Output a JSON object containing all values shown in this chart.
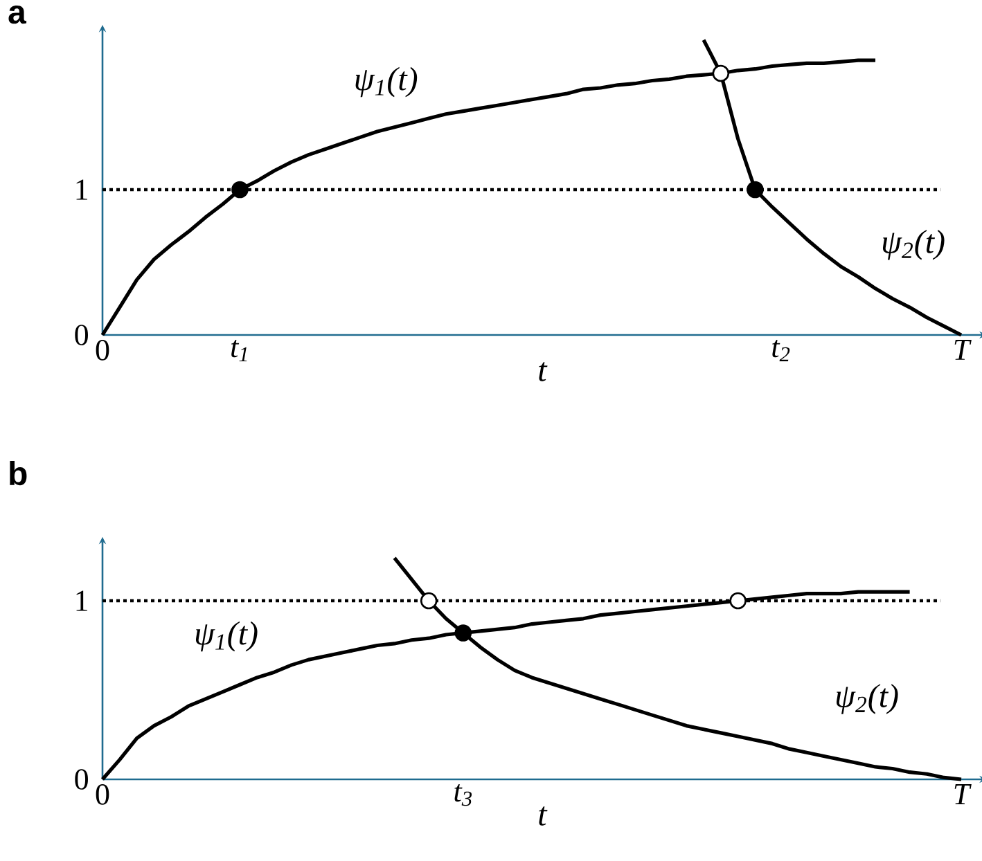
{
  "chart_data": [
    {
      "type": "line",
      "title": "a",
      "xlabel": "t",
      "categories": [
        null,
        null,
        null,
        null,
        null,
        null,
        null,
        null,
        null,
        null,
        null,
        null,
        null,
        null,
        null,
        null,
        null,
        null,
        null,
        null,
        null,
        null,
        null,
        null,
        null,
        null,
        null,
        null,
        null,
        null,
        null,
        null,
        null,
        null,
        null,
        null,
        null,
        null,
        null,
        null,
        null,
        null,
        null,
        null,
        null,
        null,
        null,
        null,
        null,
        null,
        null
      ],
      "ylim": [
        0,
        2.1
      ],
      "yticks": [
        0,
        1
      ],
      "annotations": [
        "0",
        "t$_{1}$",
        "t$_{2}$",
        "T"
      ],
      "ref_lines": [
        {
          "axis": "y",
          "value": 1,
          "color": "#000000",
          "line_style": "dotted"
        }
      ],
      "series": [
        {
          "name": "ψ$_{1}$(t)",
          "color": "#000000",
          "values": [
            0,
            0.19,
            0.38,
            0.52,
            0.62,
            0.71,
            0.81,
            0.9,
            1.0,
            1.06,
            1.13,
            1.19,
            1.24,
            1.28,
            1.32,
            1.36,
            1.4,
            1.43,
            1.46,
            1.49,
            1.52,
            1.54,
            1.56,
            1.58,
            1.6,
            1.62,
            1.64,
            1.66,
            1.69,
            1.7,
            1.72,
            1.73,
            1.75,
            1.76,
            1.78,
            1.79,
            1.8,
            1.82,
            1.83,
            1.85,
            1.86,
            1.87,
            1.87,
            1.88,
            1.89,
            1.89,
            null,
            null,
            null,
            null,
            null
          ]
        },
        {
          "name": "ψ$_{2}$(t)",
          "color": "#000000",
          "values": [
            null,
            null,
            null,
            null,
            null,
            null,
            null,
            null,
            null,
            null,
            null,
            null,
            null,
            null,
            null,
            null,
            null,
            null,
            null,
            null,
            null,
            null,
            null,
            null,
            null,
            null,
            null,
            null,
            null,
            null,
            null,
            null,
            null,
            null,
            null,
            2.03,
            1.8,
            1.35,
            1.0,
            0.88,
            0.77,
            0.66,
            0.56,
            0.47,
            0.4,
            0.32,
            0.25,
            0.19,
            0.12,
            0.06,
            0
          ]
        },
        {
          "type": "scatter",
          "color": "#000000",
          "marker": "circle",
          "values": [
            null,
            null,
            null,
            null,
            null,
            null,
            null,
            null,
            1,
            null,
            null,
            null,
            null,
            null,
            null,
            null,
            null,
            null,
            null,
            null,
            null,
            null,
            null,
            null,
            null,
            null,
            null,
            null,
            null,
            null,
            null,
            null,
            null,
            null,
            null,
            null,
            null,
            null,
            1,
            null,
            null,
            null,
            null,
            null,
            null,
            null,
            null,
            null,
            null,
            null,
            null
          ]
        },
        {
          "type": "scatter",
          "color": "#ffffff",
          "marker": "circle",
          "values": [
            null,
            null,
            null,
            null,
            null,
            null,
            null,
            null,
            null,
            null,
            null,
            null,
            null,
            null,
            null,
            null,
            null,
            null,
            null,
            null,
            null,
            null,
            null,
            null,
            null,
            null,
            null,
            null,
            null,
            null,
            null,
            null,
            null,
            null,
            null,
            null,
            1.8,
            null,
            null,
            null,
            null,
            null,
            null,
            null,
            null,
            null,
            null,
            null,
            null,
            null,
            null
          ]
        }
      ]
    },
    {
      "type": "line",
      "title": "b",
      "xlabel": "t",
      "categories": [
        null,
        null,
        null,
        null,
        null,
        null,
        null,
        null,
        null,
        null,
        null,
        null,
        null,
        null,
        null,
        null,
        null,
        null,
        null,
        null,
        null,
        null,
        null,
        null,
        null,
        null,
        null,
        null,
        null,
        null,
        null,
        null,
        null,
        null,
        null,
        null,
        null,
        null,
        null,
        null,
        null,
        null,
        null,
        null,
        null,
        null,
        null,
        null,
        null,
        null,
        null
      ],
      "ylim": [
        0,
        1.33
      ],
      "yticks": [
        0,
        1
      ],
      "annotations": [
        "0",
        "t$_{3}$",
        "T"
      ],
      "ref_lines": [
        {
          "axis": "y",
          "value": 1,
          "color": "#000000",
          "line_style": "dotted"
        }
      ],
      "series": [
        {
          "name": "ψ$_{1}$(t)",
          "color": "#000000",
          "values": [
            0,
            0.11,
            0.23,
            0.3,
            0.35,
            0.41,
            0.45,
            0.49,
            0.53,
            0.57,
            0.6,
            0.64,
            0.67,
            0.69,
            0.71,
            0.73,
            0.75,
            0.76,
            0.78,
            0.79,
            0.81,
            0.82,
            0.83,
            0.84,
            0.85,
            0.87,
            0.88,
            0.89,
            0.9,
            0.92,
            0.93,
            0.94,
            0.95,
            0.96,
            0.97,
            0.98,
            0.99,
            1.0,
            1.01,
            1.02,
            1.03,
            1.04,
            1.04,
            1.04,
            1.05,
            1.05,
            1.05,
            1.05,
            null,
            null,
            null
          ]
        },
        {
          "name": "ψ$_{2}$(t)",
          "color": "#000000",
          "values": [
            null,
            null,
            null,
            null,
            null,
            null,
            null,
            null,
            null,
            null,
            null,
            null,
            null,
            null,
            null,
            null,
            null,
            1.24,
            1.12,
            1.0,
            0.9,
            0.82,
            0.74,
            0.67,
            0.61,
            0.57,
            0.54,
            0.51,
            0.48,
            0.45,
            0.42,
            0.39,
            0.36,
            0.33,
            0.3,
            0.28,
            0.26,
            0.24,
            0.22,
            0.2,
            0.17,
            0.15,
            0.13,
            0.11,
            0.09,
            0.07,
            0.06,
            0.04,
            0.03,
            0.01,
            0
          ]
        },
        {
          "type": "scatter",
          "color": "#000000",
          "marker": "circle",
          "values": [
            null,
            null,
            null,
            null,
            null,
            null,
            null,
            null,
            null,
            null,
            null,
            null,
            null,
            null,
            null,
            null,
            null,
            null,
            null,
            null,
            null,
            0.82,
            null,
            null,
            null,
            null,
            null,
            null,
            null,
            null,
            null,
            null,
            null,
            null,
            null,
            null,
            null,
            null,
            null,
            null,
            null,
            null,
            null,
            null,
            null,
            null,
            null,
            null,
            null,
            null,
            null
          ]
        },
        {
          "type": "scatter",
          "color": "#ffffff",
          "marker": "circle",
          "values": [
            null,
            null,
            null,
            null,
            null,
            null,
            null,
            null,
            null,
            null,
            null,
            null,
            null,
            null,
            null,
            null,
            null,
            null,
            null,
            1,
            null,
            null,
            null,
            null,
            null,
            null,
            null,
            null,
            null,
            null,
            null,
            null,
            null,
            null,
            null,
            null,
            null,
            1,
            null,
            null,
            null,
            null,
            null,
            null,
            null,
            null,
            null,
            null,
            null,
            null,
            null
          ]
        }
      ]
    }
  ]
}
